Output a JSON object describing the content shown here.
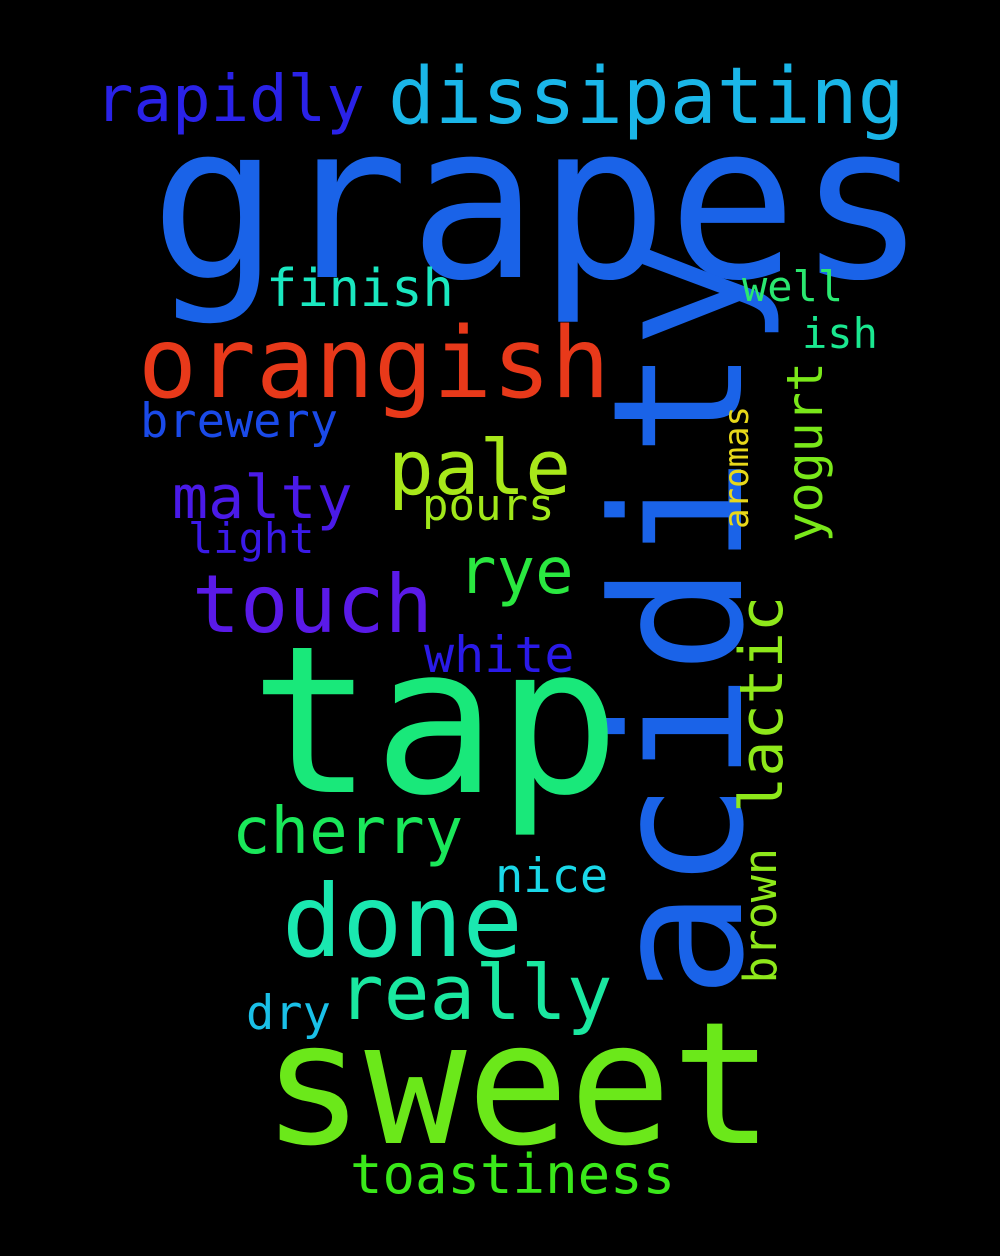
{
  "words": [
    {
      "text": "grapes",
      "color": "#1a63e8"
    },
    {
      "text": "acidity",
      "color": "#1a63e8"
    },
    {
      "text": "tap",
      "color": "#19e87a"
    },
    {
      "text": "sweet",
      "color": "#6be81a"
    },
    {
      "text": "orangish",
      "color": "#e8391a"
    },
    {
      "text": "dissipating",
      "color": "#1ab6e8"
    },
    {
      "text": "rapidly",
      "color": "#2a22e8"
    },
    {
      "text": "done",
      "color": "#1ae8b0"
    },
    {
      "text": "touch",
      "color": "#5a1ae8"
    },
    {
      "text": "pale",
      "color": "#a8e81a"
    },
    {
      "text": "really",
      "color": "#1ae8a0"
    },
    {
      "text": "malty",
      "color": "#4a1ae8"
    },
    {
      "text": "cherry",
      "color": "#1ae85a"
    },
    {
      "text": "lactic",
      "color": "#8ee81a"
    },
    {
      "text": "rye",
      "color": "#2ae840"
    },
    {
      "text": "finish",
      "color": "#1ae8c0"
    },
    {
      "text": "yogurt",
      "color": "#7ae81a"
    },
    {
      "text": "toastiness",
      "color": "#3ae81a"
    },
    {
      "text": "brewery",
      "color": "#1a4ae8"
    },
    {
      "text": "white",
      "color": "#2a1ae8"
    },
    {
      "text": "pours",
      "color": "#a0e81a"
    },
    {
      "text": "brown",
      "color": "#8ee81a"
    },
    {
      "text": "nice",
      "color": "#1ad8e8"
    },
    {
      "text": "dry",
      "color": "#1ac0e8"
    },
    {
      "text": "light",
      "color": "#3a1ae8"
    },
    {
      "text": "well",
      "color": "#2ae870"
    },
    {
      "text": "ish",
      "color": "#1ae890"
    },
    {
      "text": "aromas",
      "color": "#e8d81a"
    }
  ]
}
